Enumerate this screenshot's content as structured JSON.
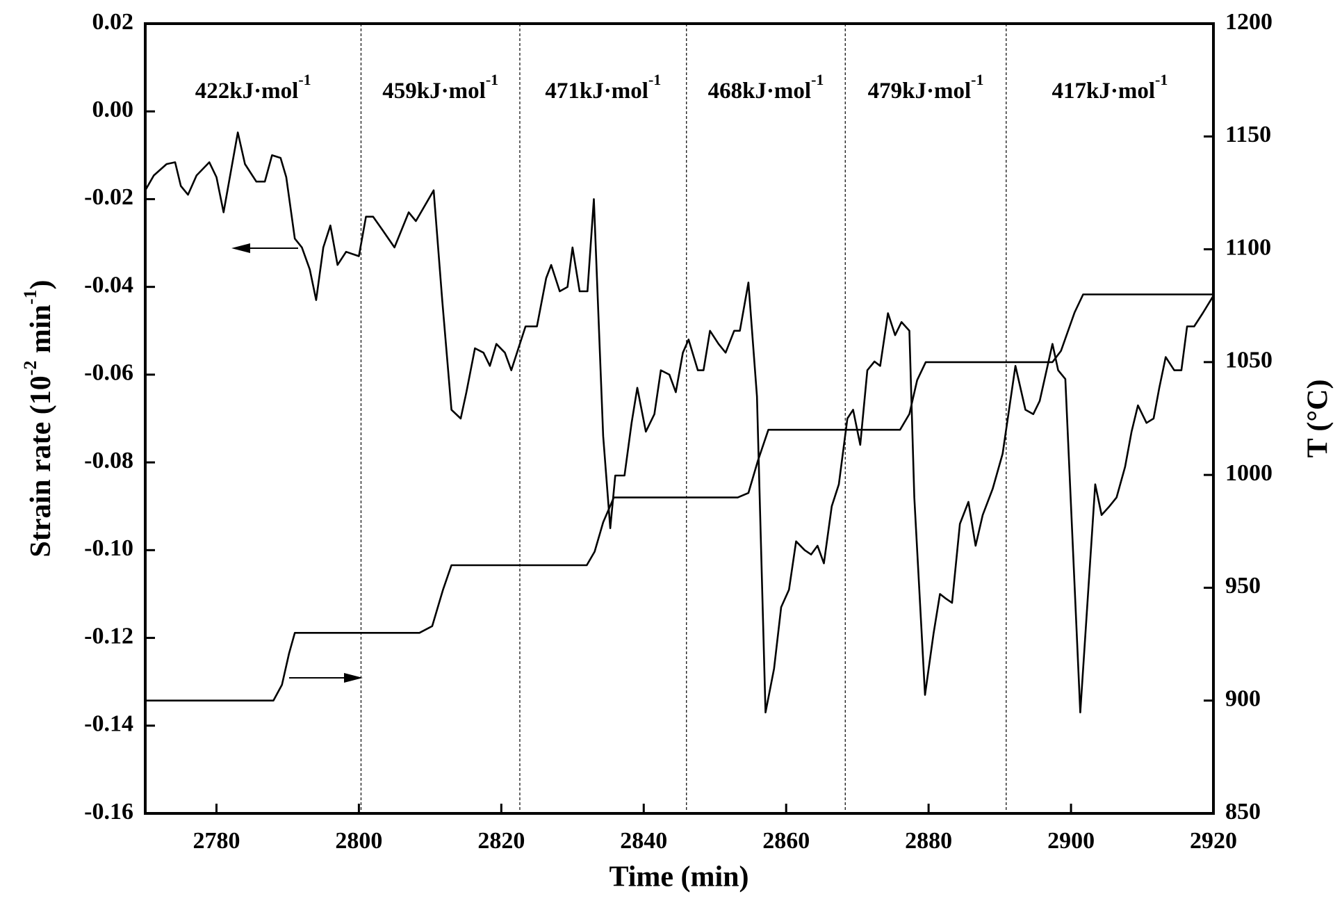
{
  "chart_data": {
    "type": "line",
    "xlabel": "Time (min)",
    "ylabel": [
      "Strain rate (10",
      "-2",
      " min",
      "-1",
      ")"
    ],
    "y2label": "T (°C)",
    "xlim": [
      2770,
      2920
    ],
    "xticks": [
      2780,
      2800,
      2820,
      2840,
      2860,
      2880,
      2900,
      2920
    ],
    "ylim": [
      -0.16,
      0.02
    ],
    "yticks": [
      -0.16,
      -0.14,
      -0.12,
      {
        "value": -0.1,
        "label": "-0.10"
      },
      -0.08,
      -0.06,
      -0.04,
      -0.02,
      {
        "value": 0,
        "label": "0.00"
      },
      0.02
    ],
    "y2lim": [
      850,
      1200
    ],
    "y2ticks": [
      850,
      900,
      950,
      1000,
      1050,
      1100,
      1150,
      1200
    ],
    "vlines": [
      2800.3,
      2822.6,
      2846,
      2868.3,
      2890.9
    ],
    "annotations": [
      {
        "text": "422kJ·mol",
        "sup": "-1"
      },
      {
        "text": "459kJ·mol",
        "sup": "-1"
      },
      {
        "text": "471kJ·mol",
        "sup": "-1"
      },
      {
        "text": "468kJ·mol",
        "sup": "-1"
      },
      {
        "text": "479kJ·mol",
        "sup": "-1"
      },
      {
        "text": "417kJ·mol",
        "sup": "-1"
      }
    ],
    "series": [
      {
        "color": "#000000",
        "x": [
          2770,
          2771.2,
          2773,
          2774.2,
          2775,
          2776,
          2777.2,
          2779,
          2780,
          2781,
          2783,
          2784,
          2785.6,
          2786.8,
          2787.8,
          2789,
          2789.8,
          2791,
          2792,
          2793.1,
          2794,
          2795,
          2796,
          2797,
          2798.2,
          2800,
          2801,
          2802,
          2803.3,
          2805,
          2807,
          2808,
          2810.5,
          2811.7,
          2813,
          2814.3,
          2815.1,
          2816.3,
          2817.5,
          2818.4,
          2819.3,
          2820.5,
          2821.4,
          2822.6,
          2823.4,
          2825,
          2826.3,
          2827,
          2828.2,
          2829.3,
          2830,
          2831,
          2832.1,
          2833,
          2834.3,
          2835.3,
          2836,
          2837.3,
          2838.3,
          2839.1,
          2840.3,
          2841.5,
          2842.4,
          2843.6,
          2844.5,
          2845.5,
          2846.3,
          2847.6,
          2848.4,
          2849.3,
          2850.5,
          2851.5,
          2852.7,
          2853.5,
          2854.7,
          2855.9,
          2857.1,
          2858.3,
          2859.3,
          2860.4,
          2861.4,
          2862.6,
          2863.5,
          2864.4,
          2865.3,
          2866.4,
          2867.4,
          2868.6,
          2869.4,
          2870.4,
          2871.4,
          2872.4,
          2873.2,
          2874.3,
          2875.3,
          2876.2,
          2877.3,
          2878,
          2879.5,
          2880.7,
          2881.6,
          2882.4,
          2883.3,
          2884.4,
          2885.6,
          2886.6,
          2887.6,
          2889,
          2890.4,
          2892.2,
          2893.6,
          2894.7,
          2895.6,
          2897.4,
          2898.2,
          2899.2,
          2901.3,
          2903.4,
          2904.3,
          2905.4,
          2906.4,
          2907.6,
          2908.5,
          2909.4,
          2910.6,
          2911.6,
          2912.4,
          2913.3,
          2914.5,
          2915.5,
          2916.3,
          2917.3,
          2918.5,
          2920
        ],
        "values": [
          -0.018,
          -0.0146,
          -0.012,
          -0.0116,
          -0.017,
          -0.019,
          -0.0146,
          -0.0116,
          -0.015,
          -0.023,
          -0.0048,
          -0.012,
          -0.016,
          -0.016,
          -0.01,
          -0.0106,
          -0.015,
          -0.029,
          -0.031,
          -0.036,
          -0.043,
          -0.031,
          -0.026,
          -0.035,
          -0.032,
          -0.033,
          -0.024,
          -0.024,
          -0.027,
          -0.031,
          -0.023,
          -0.025,
          -0.018,
          -0.043,
          -0.068,
          -0.07,
          -0.064,
          -0.054,
          -0.055,
          -0.058,
          -0.053,
          -0.055,
          -0.059,
          -0.053,
          -0.049,
          -0.049,
          -0.038,
          -0.035,
          -0.041,
          -0.04,
          -0.031,
          -0.041,
          -0.041,
          -0.02,
          -0.074,
          -0.095,
          -0.083,
          -0.083,
          -0.071,
          -0.063,
          -0.073,
          -0.069,
          -0.059,
          -0.06,
          -0.064,
          -0.055,
          -0.052,
          -0.059,
          -0.059,
          -0.05,
          -0.053,
          -0.055,
          -0.05,
          -0.05,
          -0.039,
          -0.065,
          -0.137,
          -0.127,
          -0.113,
          -0.109,
          -0.098,
          -0.1,
          -0.101,
          -0.099,
          -0.103,
          -0.09,
          -0.085,
          -0.07,
          -0.068,
          -0.076,
          -0.059,
          -0.057,
          -0.058,
          -0.046,
          -0.051,
          -0.048,
          -0.05,
          -0.088,
          -0.133,
          -0.119,
          -0.11,
          -0.111,
          -0.112,
          -0.094,
          -0.089,
          -0.099,
          -0.092,
          -0.086,
          -0.078,
          -0.058,
          -0.068,
          -0.069,
          -0.066,
          -0.053,
          -0.059,
          -0.061,
          -0.137,
          -0.085,
          -0.092,
          -0.09,
          -0.088,
          -0.081,
          -0.073,
          -0.067,
          -0.071,
          -0.07,
          -0.063,
          -0.056,
          -0.059,
          -0.059,
          -0.049,
          -0.049,
          -0.046,
          -0.042
        ]
      },
      {
        "color": "#000000",
        "axis": "y2",
        "x": [
          2770,
          2788,
          2789.2,
          2790.2,
          2791,
          2808.5,
          2810.3,
          2811.8,
          2813,
          2832,
          2833.1,
          2834.3,
          2835.8,
          2853.2,
          2854.7,
          2856,
          2857.5,
          2876,
          2877.3,
          2878.4,
          2879.6,
          2897.4,
          2898.6,
          2900.5,
          2901.7,
          2920
        ],
        "values": [
          900,
          900,
          907,
          921,
          930,
          930,
          933,
          949,
          960,
          960,
          966,
          979,
          990,
          990,
          992,
          1006,
          1020,
          1020,
          1027,
          1042,
          1050,
          1050,
          1055,
          1072,
          1080,
          1080
        ]
      }
    ]
  }
}
